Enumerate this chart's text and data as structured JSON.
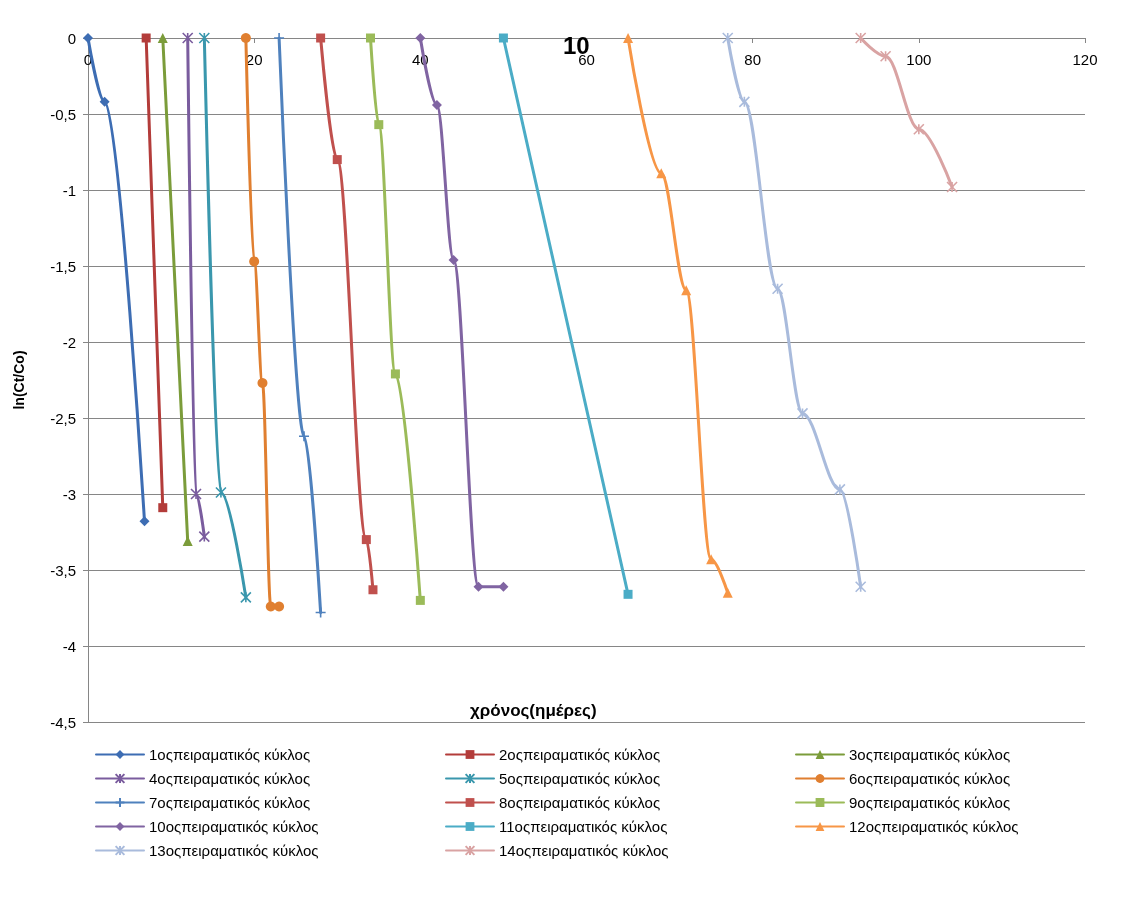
{
  "chart_data": {
    "type": "line",
    "title": "10",
    "xlabel": "χρόνος(ημέρες)",
    "ylabel": "ln(Ct/Co)",
    "xlim": [
      0,
      120
    ],
    "xticks": [
      0,
      20,
      40,
      60,
      80,
      100,
      120
    ],
    "ylim": [
      -4.5,
      0
    ],
    "yticks": [
      {
        "value": -4.5,
        "label": "-4,5"
      },
      -4,
      {
        "value": -3.5,
        "label": "-3,5"
      },
      -3,
      {
        "value": -2.5,
        "label": "-2,5"
      },
      -2,
      {
        "value": -1.5,
        "label": "-1,5"
      },
      -1,
      {
        "value": -0.5,
        "label": "-0,5"
      },
      0
    ],
    "grid": "y",
    "legend": "bottom",
    "series": [
      {
        "name": "1οςπειραματικός κύκλος",
        "color": "#3d6db3",
        "marker": "diamond",
        "x": [
          0,
          2,
          6.8
        ],
        "values": [
          0,
          -0.42,
          -3.18
        ]
      },
      {
        "name": "2οςπειραματικός κύκλος",
        "color": "#b33c3a",
        "marker": "square",
        "x": [
          7,
          9
        ],
        "values": [
          0,
          -3.09
        ]
      },
      {
        "name": "3οςπειραματικός κύκλος",
        "color": "#7b9c3a",
        "marker": "triangle",
        "x": [
          9,
          12
        ],
        "values": [
          0,
          -3.31
        ]
      },
      {
        "name": "4οςπειραματικός κύκλος",
        "color": "#7a5c9e",
        "marker": "cross",
        "x": [
          12,
          13,
          14
        ],
        "values": [
          0,
          -3.0,
          -3.28
        ]
      },
      {
        "name": "5οςπειραματικός κύκλος",
        "color": "#3a97ad",
        "marker": "cross",
        "x": [
          14,
          16,
          19
        ],
        "values": [
          0,
          -2.99,
          -3.68
        ]
      },
      {
        "name": "6οςπειραματικός κύκλος",
        "color": "#e07f30",
        "marker": "circle",
        "x": [
          19,
          20,
          21,
          22,
          23
        ],
        "values": [
          0,
          -1.47,
          -2.27,
          -3.74,
          -3.74
        ]
      },
      {
        "name": "7οςπειραματικός κύκλος",
        "color": "#4f81bd",
        "marker": "plus",
        "x": [
          23,
          26,
          28
        ],
        "values": [
          0,
          -2.62,
          -3.78
        ]
      },
      {
        "name": "8οςπειραματικός κύκλος",
        "color": "#c0504d",
        "marker": "square",
        "x": [
          28,
          30,
          33.5,
          34.3
        ],
        "values": [
          0,
          -0.8,
          -3.3,
          -3.63
        ]
      },
      {
        "name": "9οςπειραματικός κύκλος",
        "color": "#9bbb59",
        "marker": "square",
        "x": [
          34,
          35,
          37,
          40
        ],
        "values": [
          0,
          -0.57,
          -2.21,
          -3.7
        ]
      },
      {
        "name": "10οςπειραματικός κύκλος",
        "color": "#8064a2",
        "marker": "diamond",
        "x": [
          40,
          42,
          44,
          47,
          50
        ],
        "values": [
          0,
          -0.44,
          -1.46,
          -3.61,
          -3.61
        ]
      },
      {
        "name": "11οςπειραματικός κύκλος",
        "color": "#4bacc6",
        "marker": "square",
        "x": [
          50,
          65
        ],
        "values": [
          0,
          -3.66
        ]
      },
      {
        "name": "12οςπειραματικός κύκλος",
        "color": "#f79646",
        "marker": "triangle",
        "x": [
          65,
          69,
          72,
          75,
          77
        ],
        "values": [
          0,
          -0.89,
          -1.66,
          -3.43,
          -3.65
        ]
      },
      {
        "name": "13οςπειραματικός κύκλος",
        "color": "#a9bbdc",
        "marker": "cross",
        "x": [
          77,
          79,
          83,
          86,
          90.5,
          93
        ],
        "values": [
          0,
          -0.42,
          -1.65,
          -2.47,
          -2.97,
          -3.61
        ]
      },
      {
        "name": "14οςπειραματικός κύκλος",
        "color": "#d9a3a3",
        "marker": "cross",
        "x": [
          93,
          96,
          100,
          104
        ],
        "values": [
          0,
          -0.12,
          -0.6,
          -0.98
        ]
      }
    ]
  }
}
